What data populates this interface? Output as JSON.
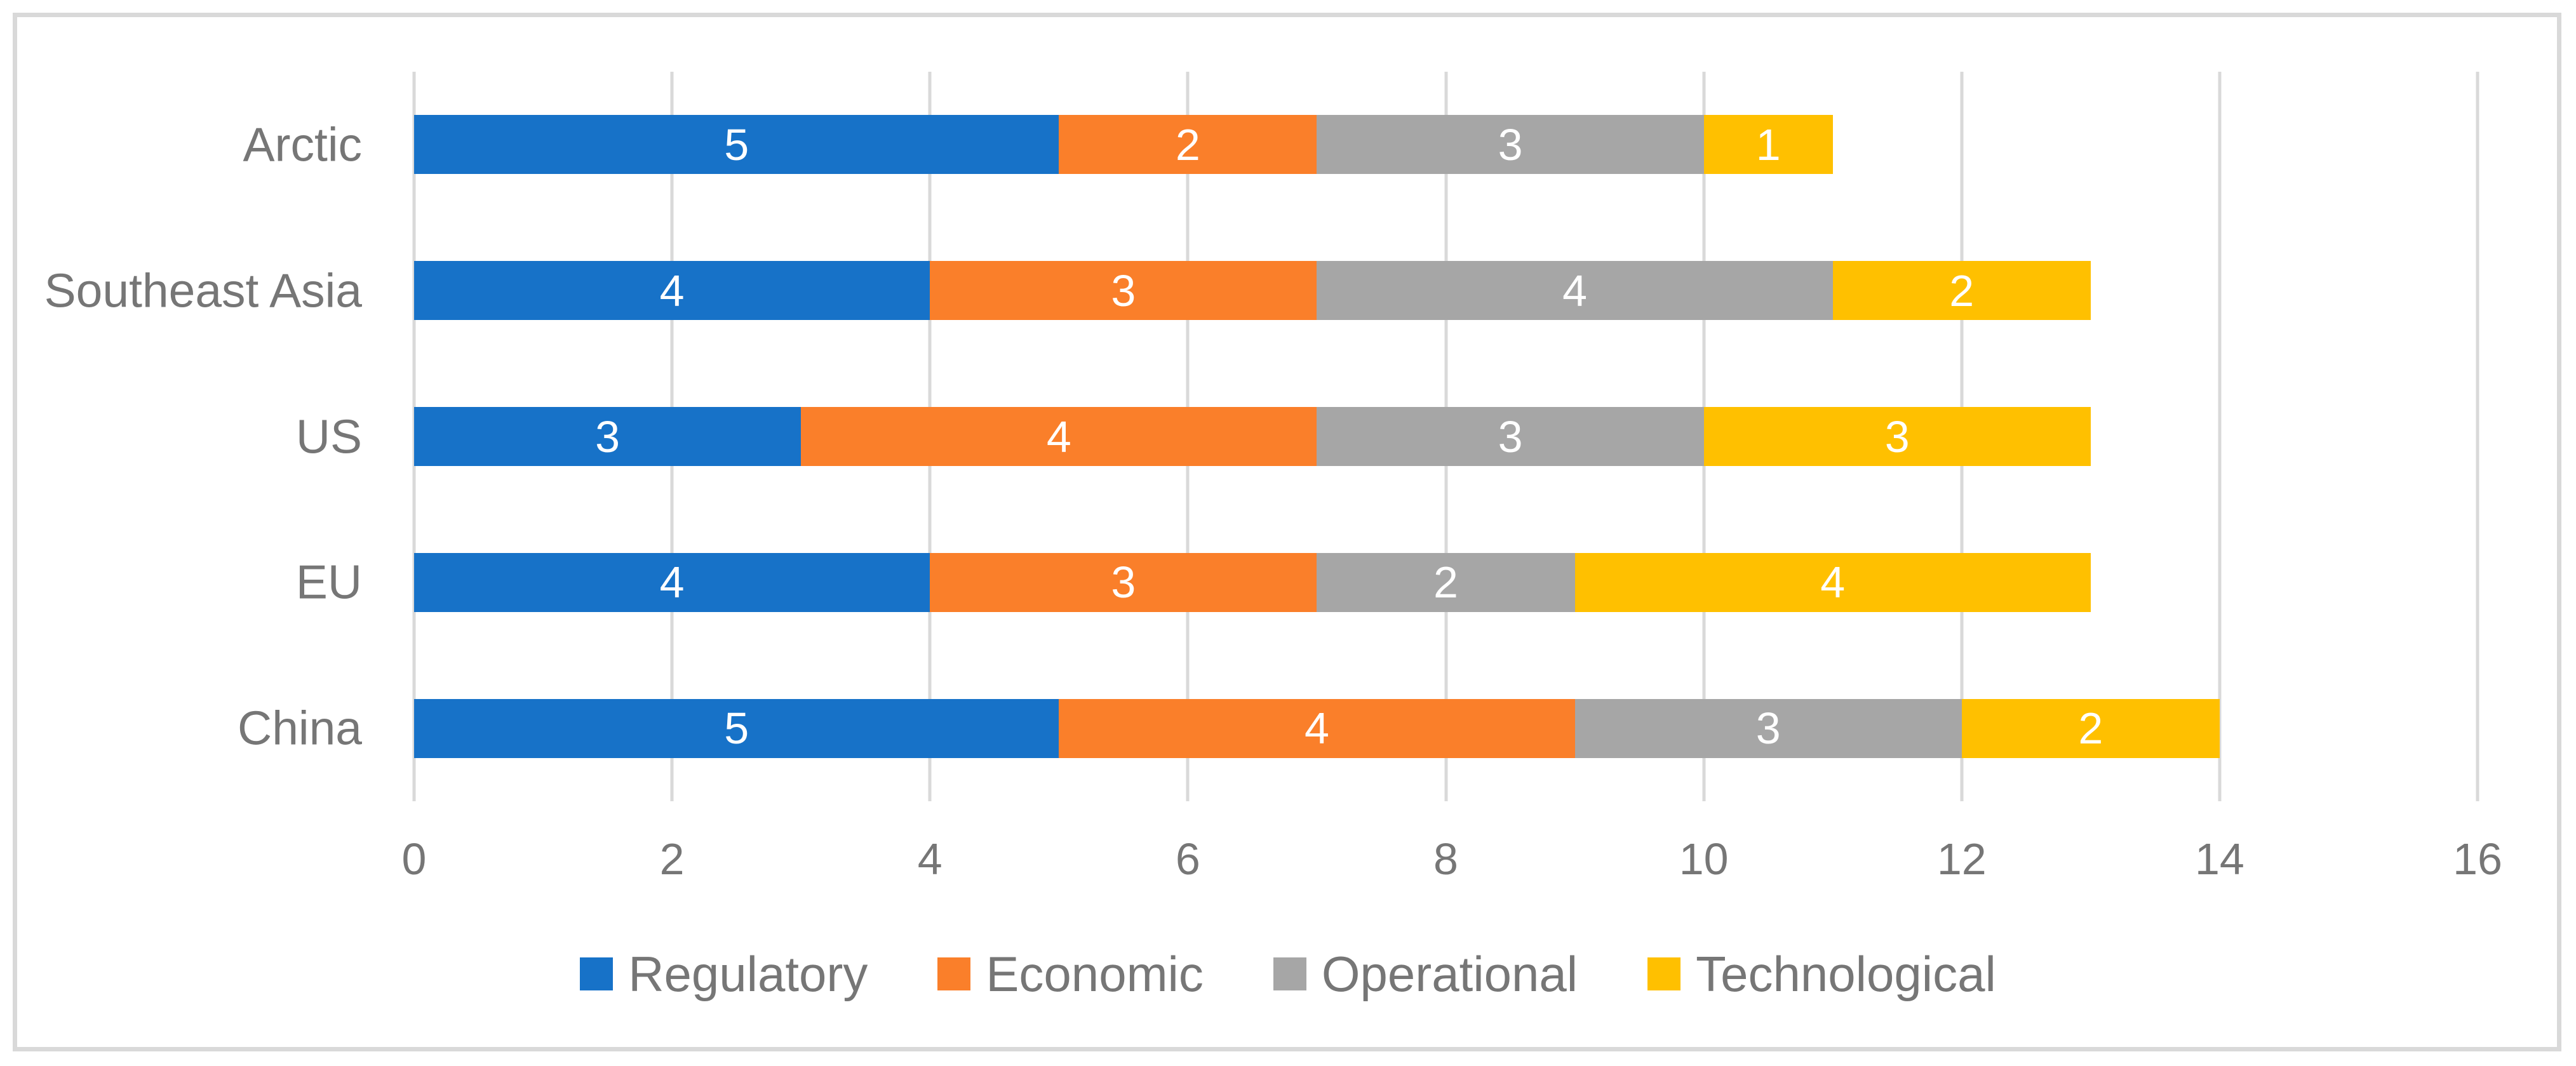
{
  "chart_data": {
    "type": "bar",
    "orientation": "horizontal",
    "stacked": true,
    "title": "",
    "xlabel": "",
    "ylabel": "",
    "categories": [
      "Arctic",
      "Southeast Asia",
      "US",
      "EU",
      "China"
    ],
    "series": [
      {
        "name": "Regulatory",
        "color": "#1772C8",
        "values": [
          5,
          4,
          3,
          4,
          5
        ]
      },
      {
        "name": "Economic",
        "color": "#FA7F2A",
        "values": [
          2,
          3,
          4,
          3,
          4
        ]
      },
      {
        "name": "Operational",
        "color": "#A6A6A6",
        "values": [
          3,
          4,
          3,
          2,
          3
        ]
      },
      {
        "name": "Technological",
        "color": "#FFC000",
        "values": [
          1,
          2,
          3,
          4,
          2
        ]
      }
    ],
    "totals": [
      11,
      13,
      13,
      13,
      14
    ],
    "xlim": [
      0,
      16
    ],
    "x_ticks": [
      0,
      2,
      4,
      6,
      8,
      10,
      12,
      14,
      16
    ],
    "grid": true,
    "data_labels": true,
    "legend_position": "bottom"
  },
  "colors": {
    "regulatory": "#1772C8",
    "economic": "#FA7F2A",
    "operational": "#A6A6A6",
    "technological": "#FFC000",
    "gridline": "#D9D9D9",
    "frame_border": "#D9D9D9",
    "axis_text": "#767676",
    "bar_value_text": "#FFFFFF",
    "background": "#FFFFFF"
  }
}
